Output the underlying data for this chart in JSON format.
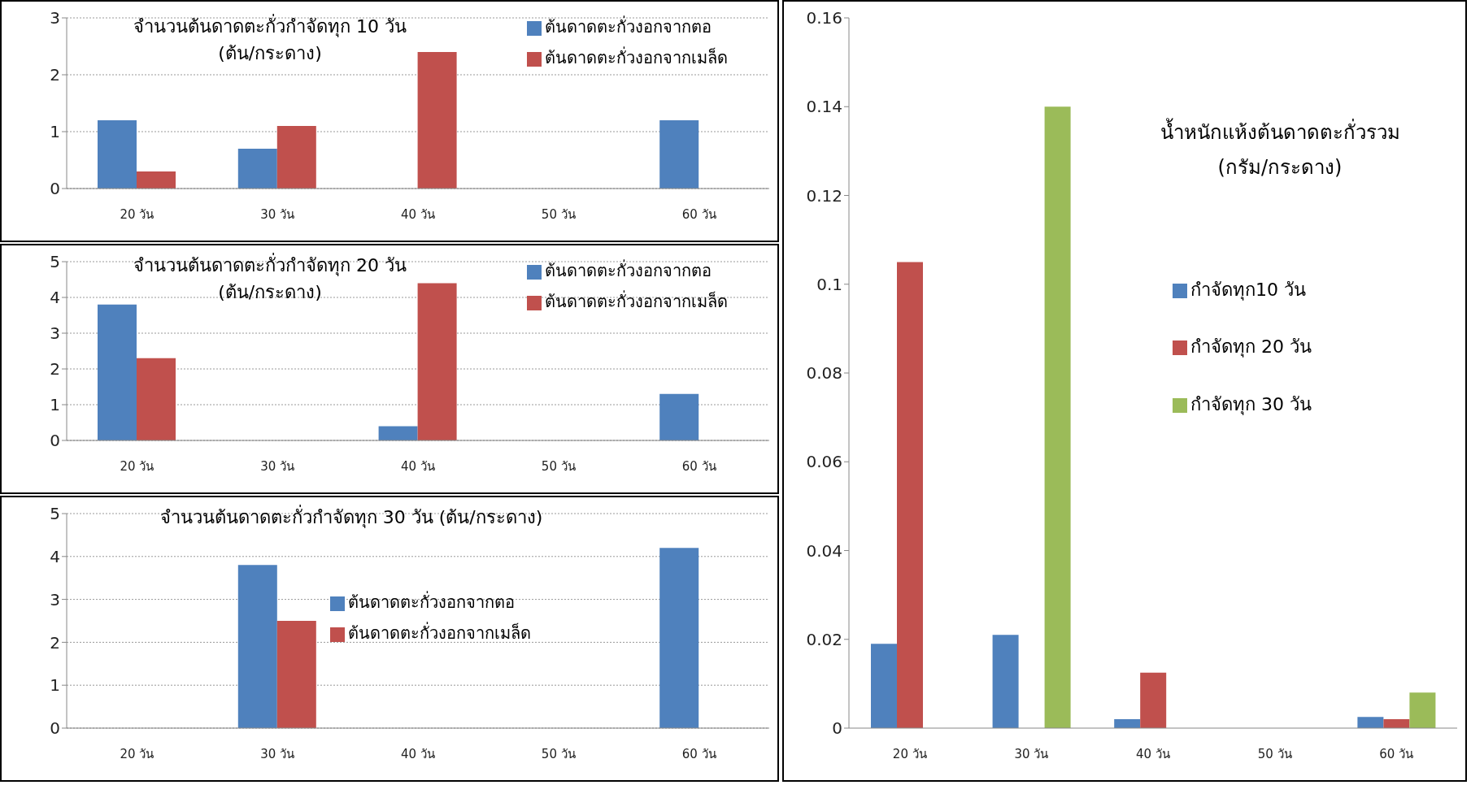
{
  "chart_data": [
    {
      "type": "bar",
      "title": "จำนวนต้นดาดตะกั่วกำจัดทุก 10 วัน\n(ต้น/กระดาง)",
      "categories": [
        "20 วัน",
        "30 วัน",
        "40 วัน",
        "50 วัน",
        "60 วัน"
      ],
      "series": [
        {
          "name": "ต้นดาดตะกั่วงอกจากตอ",
          "color": "#4f81bd",
          "values": [
            1.2,
            0.7,
            0,
            0,
            1.2
          ]
        },
        {
          "name": "ต้นดาดตะกั่วงอกจากเมล็ด",
          "color": "#c0504d",
          "values": [
            0.3,
            1.1,
            2.4,
            0,
            0
          ]
        }
      ],
      "ylim": [
        0,
        3
      ],
      "yticks": [
        0,
        1,
        2,
        3
      ],
      "grid": "y",
      "legend": "top right"
    },
    {
      "type": "bar",
      "title": "จำนวนต้นดาดตะกั่วกำจัดทุก 20 วัน\n(ต้น/กระดาง)",
      "categories": [
        "20 วัน",
        "30 วัน",
        "40 วัน",
        "50 วัน",
        "60 วัน"
      ],
      "series": [
        {
          "name": "ต้นดาดตะกั่วงอกจากตอ",
          "color": "#4f81bd",
          "values": [
            3.8,
            0,
            0.4,
            0,
            1.3
          ]
        },
        {
          "name": "ต้นดาดตะกั่วงอกจากเมล็ด",
          "color": "#c0504d",
          "values": [
            2.3,
            0,
            4.4,
            0,
            0
          ]
        }
      ],
      "ylim": [
        0,
        5
      ],
      "yticks": [
        0,
        1,
        2,
        3,
        4,
        5
      ],
      "grid": "y",
      "legend": "top right"
    },
    {
      "type": "bar",
      "title": "จำนวนต้นดาดตะกั่วกำจัดทุก 30 วัน (ต้น/กระดาง)",
      "categories": [
        "20 วัน",
        "30 วัน",
        "40 วัน",
        "50 วัน",
        "60 วัน"
      ],
      "series": [
        {
          "name": "ต้นดาดตะกั่วงอกจากตอ",
          "color": "#4f81bd",
          "values": [
            0,
            3.8,
            0,
            0,
            4.2
          ]
        },
        {
          "name": "ต้นดาดตะกั่วงอกจากเมล็ด",
          "color": "#c0504d",
          "values": [
            0,
            2.5,
            0,
            0,
            0
          ]
        }
      ],
      "ylim": [
        0,
        5
      ],
      "yticks": [
        0,
        1,
        2,
        3,
        4,
        5
      ],
      "grid": "y",
      "legend": "center"
    },
    {
      "type": "bar",
      "title": "น้ำหนักแห้งต้นดาดตะกั่วรวม\n(กรัม/กระดาง)",
      "categories": [
        "20 วัน",
        "30 วัน",
        "40 วัน",
        "50 วัน",
        "60 วัน"
      ],
      "series": [
        {
          "name": "กำจัดทุก10 วัน",
          "color": "#4f81bd",
          "values": [
            0.019,
            0.021,
            0.002,
            0,
            0.0025
          ]
        },
        {
          "name": "กำจัดทุก 20 วัน",
          "color": "#c0504d",
          "values": [
            0.105,
            0,
            0.0125,
            0,
            0.002
          ]
        },
        {
          "name": "กำจัดทุก 30 วัน",
          "color": "#9bbb59",
          "values": [
            0,
            0.14,
            0,
            0,
            0.008
          ]
        }
      ],
      "ylim": [
        0,
        0.16
      ],
      "yticks": [
        0,
        0.02,
        0.04,
        0.06,
        0.08,
        0.1,
        0.12,
        0.14,
        0.16
      ],
      "grid": false,
      "legend": "right"
    }
  ]
}
